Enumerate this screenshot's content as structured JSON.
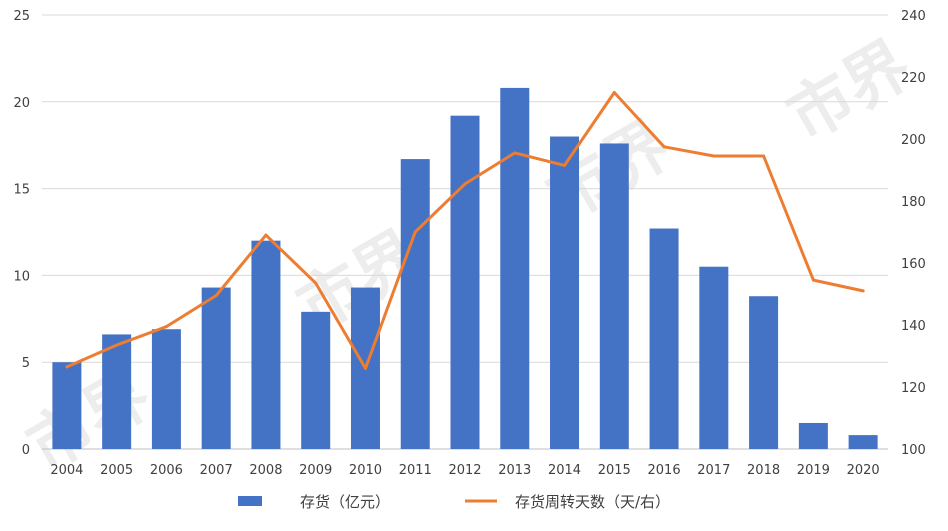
{
  "chart_data": {
    "type": "bar",
    "categories": [
      "2004",
      "2005",
      "2006",
      "2007",
      "2008",
      "2009",
      "2010",
      "2011",
      "2012",
      "2013",
      "2014",
      "2015",
      "2016",
      "2017",
      "2018",
      "2019",
      "2020"
    ],
    "series": [
      {
        "name": "存货（亿元）",
        "type": "bar",
        "axis": "left",
        "color": "#4472c4",
        "values": [
          5.0,
          6.6,
          6.9,
          9.3,
          12.0,
          7.9,
          9.3,
          16.7,
          19.2,
          20.8,
          18.0,
          17.6,
          12.7,
          10.5,
          8.8,
          1.5,
          0.8
        ]
      },
      {
        "name": "存货周转天数（天/右）",
        "type": "line",
        "axis": "right",
        "color": "#ed7d31",
        "values": [
          126.5,
          133.5,
          139.5,
          149.5,
          169.0,
          153.5,
          126.0,
          170.0,
          185.5,
          195.5,
          191.5,
          215.0,
          197.5,
          194.5,
          194.5,
          154.5,
          151.0
        ]
      }
    ],
    "y_left": {
      "min": 0,
      "max": 25,
      "ticks": [
        0,
        5,
        10,
        15,
        20,
        25
      ]
    },
    "y_right": {
      "min": 100,
      "max": 240,
      "ticks": [
        100,
        120,
        140,
        160,
        180,
        200,
        220,
        240
      ]
    },
    "grid": true,
    "legend_position": "bottom",
    "watermark": "市界"
  }
}
